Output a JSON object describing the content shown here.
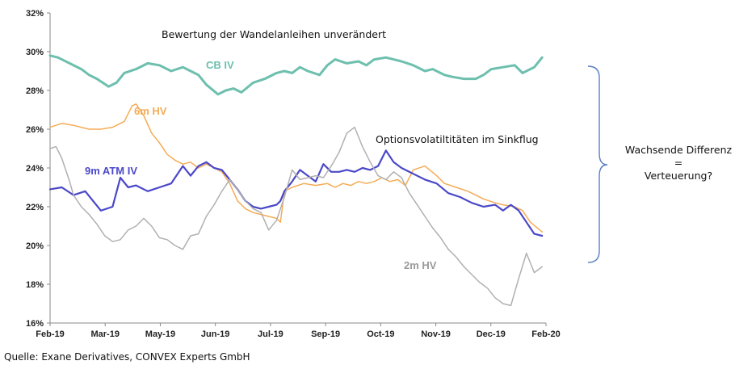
{
  "chart_data": {
    "type": "line",
    "title": "",
    "xlabel": "",
    "ylabel": "",
    "ylim": [
      16,
      32
    ],
    "yticks": [
      16,
      18,
      20,
      22,
      24,
      26,
      28,
      30,
      32
    ],
    "ytick_suffix": "%",
    "xlim": [
      0,
      12.7
    ],
    "xticks": [
      "Feb-19",
      "Mar-19",
      "May-19",
      "Jun-19",
      "Jul-19",
      "Sep-19",
      "Oct-19",
      "Nov-19",
      "Dec-19",
      "Feb-20"
    ],
    "grid": false,
    "annotations": {
      "top": "Bewertung der Wandelanleihen unverändert",
      "middle": "Optionsvolatiltitäten im Sinkflug",
      "right_1": "Wachsende Differenz",
      "right_2": "=",
      "right_3": "Verteuerung?"
    },
    "series": [
      {
        "name": "CB IV",
        "color": "#6dbfae",
        "x": [
          0,
          0.2,
          0.5,
          0.8,
          1.0,
          1.2,
          1.5,
          1.7,
          1.9,
          2.2,
          2.5,
          2.8,
          3.1,
          3.4,
          3.6,
          3.8,
          4.0,
          4.3,
          4.5,
          4.7,
          4.9,
          5.2,
          5.5,
          5.8,
          6.0,
          6.2,
          6.4,
          6.6,
          6.9,
          7.1,
          7.3,
          7.6,
          7.9,
          8.1,
          8.3,
          8.6,
          8.8,
          9.0,
          9.3,
          9.6,
          9.8,
          10.1,
          10.3,
          10.6,
          10.9,
          11.1,
          11.3,
          11.6,
          11.9,
          12.1,
          12.4,
          12.6
        ],
        "y": [
          29.8,
          29.7,
          29.4,
          29.1,
          28.8,
          28.6,
          28.2,
          28.4,
          28.9,
          29.1,
          29.4,
          29.3,
          29.0,
          29.2,
          29.0,
          28.8,
          28.3,
          27.8,
          28.0,
          28.1,
          27.9,
          28.4,
          28.6,
          28.9,
          29.0,
          28.9,
          29.2,
          29.0,
          28.8,
          29.3,
          29.6,
          29.4,
          29.5,
          29.3,
          29.6,
          29.7,
          29.6,
          29.5,
          29.3,
          29.0,
          29.1,
          28.8,
          28.7,
          28.6,
          28.6,
          28.8,
          29.1,
          29.2,
          29.3,
          28.9,
          29.2,
          29.7
        ]
      },
      {
        "name": "6m HV",
        "color": "#f5ab55",
        "x": [
          0,
          0.3,
          0.6,
          1.0,
          1.3,
          1.6,
          1.9,
          2.1,
          2.2,
          2.4,
          2.6,
          2.8,
          3.0,
          3.2,
          3.4,
          3.6,
          3.8,
          4.0,
          4.2,
          4.4,
          4.6,
          4.8,
          5.0,
          5.2,
          5.4,
          5.6,
          5.8,
          5.9,
          6.0,
          6.2,
          6.5,
          6.8,
          7.1,
          7.3,
          7.5,
          7.7,
          7.9,
          8.1,
          8.3,
          8.5,
          8.7,
          8.9,
          9.1,
          9.3,
          9.6,
          9.9,
          10.1,
          10.4,
          10.7,
          10.9,
          11.1,
          11.4,
          11.6,
          11.9,
          12.1,
          12.3,
          12.6
        ],
        "y": [
          26.1,
          26.3,
          26.2,
          26.0,
          26.0,
          26.1,
          26.4,
          27.2,
          27.3,
          26.7,
          25.8,
          25.3,
          24.7,
          24.4,
          24.2,
          24.3,
          24.0,
          24.2,
          24.0,
          23.8,
          23.2,
          22.3,
          21.9,
          21.7,
          21.6,
          21.5,
          21.4,
          21.2,
          22.8,
          23.0,
          23.2,
          23.1,
          23.2,
          23.0,
          23.2,
          23.1,
          23.3,
          23.2,
          23.3,
          23.5,
          23.3,
          23.4,
          23.1,
          23.9,
          24.1,
          23.6,
          23.2,
          23.0,
          22.8,
          22.6,
          22.4,
          22.2,
          22.1,
          22.0,
          21.8,
          21.2,
          20.7
        ]
      },
      {
        "name": "9m ATM IV",
        "color": "#4a48c8",
        "x": [
          0,
          0.3,
          0.6,
          0.9,
          1.1,
          1.3,
          1.6,
          1.8,
          2.0,
          2.2,
          2.5,
          2.8,
          3.1,
          3.4,
          3.6,
          3.8,
          4.0,
          4.2,
          4.4,
          4.6,
          4.8,
          5.0,
          5.2,
          5.4,
          5.6,
          5.8,
          5.9,
          6.0,
          6.2,
          6.4,
          6.6,
          6.8,
          7.0,
          7.2,
          7.4,
          7.6,
          7.8,
          8.0,
          8.2,
          8.4,
          8.6,
          8.8,
          9.0,
          9.3,
          9.6,
          9.9,
          10.2,
          10.5,
          10.8,
          11.1,
          11.4,
          11.6,
          11.8,
          12.0,
          12.2,
          12.4,
          12.6
        ],
        "y": [
          22.9,
          23.0,
          22.6,
          22.8,
          22.3,
          21.8,
          22.0,
          23.5,
          23.0,
          23.1,
          22.8,
          23.0,
          23.2,
          24.1,
          23.6,
          24.1,
          24.3,
          24.0,
          23.9,
          23.4,
          22.9,
          22.3,
          22.0,
          21.9,
          22.0,
          22.1,
          22.3,
          22.8,
          23.3,
          23.9,
          23.6,
          23.3,
          24.2,
          23.8,
          23.8,
          23.9,
          23.8,
          24.0,
          23.9,
          24.1,
          24.9,
          24.3,
          24.0,
          23.7,
          23.4,
          23.2,
          22.7,
          22.5,
          22.2,
          22.0,
          22.1,
          21.8,
          22.1,
          21.8,
          21.2,
          20.6,
          20.5
        ]
      },
      {
        "name": "2m HV",
        "color": "#b0b0b0",
        "x": [
          0,
          0.15,
          0.3,
          0.5,
          0.6,
          0.8,
          1.0,
          1.2,
          1.4,
          1.6,
          1.8,
          2.0,
          2.2,
          2.4,
          2.6,
          2.8,
          3.0,
          3.2,
          3.4,
          3.6,
          3.8,
          4.0,
          4.2,
          4.4,
          4.6,
          4.8,
          5.0,
          5.2,
          5.4,
          5.6,
          5.8,
          6.0,
          6.2,
          6.4,
          6.6,
          6.8,
          7.0,
          7.2,
          7.4,
          7.6,
          7.8,
          8.0,
          8.2,
          8.4,
          8.6,
          8.8,
          9.0,
          9.2,
          9.4,
          9.6,
          9.8,
          10.0,
          10.2,
          10.4,
          10.6,
          10.8,
          11.0,
          11.2,
          11.4,
          11.6,
          11.8,
          12.0,
          12.2,
          12.4,
          12.6
        ],
        "y": [
          25.0,
          25.1,
          24.5,
          23.3,
          22.6,
          22.0,
          21.6,
          21.1,
          20.5,
          20.2,
          20.3,
          20.8,
          21.0,
          21.4,
          21.0,
          20.4,
          20.3,
          20.0,
          19.8,
          20.5,
          20.6,
          21.5,
          22.1,
          22.8,
          23.4,
          22.9,
          22.3,
          21.9,
          21.7,
          20.8,
          21.3,
          22.5,
          23.9,
          23.4,
          23.5,
          23.6,
          23.5,
          24.1,
          24.8,
          25.8,
          26.1,
          25.1,
          24.3,
          23.6,
          23.4,
          23.8,
          23.5,
          22.7,
          22.1,
          21.5,
          20.9,
          20.4,
          19.8,
          19.4,
          18.9,
          18.5,
          18.1,
          17.8,
          17.3,
          17.0,
          16.9,
          18.3,
          19.6,
          18.6,
          18.9
        ]
      }
    ]
  },
  "source": "Quelle: Exane Derivatives, CONVEX Experts GmbH"
}
